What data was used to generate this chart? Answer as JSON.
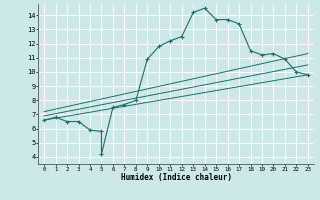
{
  "title": "",
  "xlabel": "Humidex (Indice chaleur)",
  "bg_color": "#cce8e8",
  "grid_color": "#ffffff",
  "line_color": "#1a6e6e",
  "xlim": [
    -0.5,
    23.5
  ],
  "ylim": [
    3.5,
    14.8
  ],
  "xticks": [
    0,
    1,
    2,
    3,
    4,
    5,
    6,
    7,
    8,
    9,
    10,
    11,
    12,
    13,
    14,
    15,
    16,
    17,
    18,
    19,
    20,
    21,
    22,
    23
  ],
  "yticks": [
    4,
    5,
    6,
    7,
    8,
    9,
    10,
    11,
    12,
    13,
    14
  ],
  "main_line_x": [
    0,
    1,
    2,
    3,
    4,
    5,
    5,
    6,
    7,
    8,
    9,
    10,
    11,
    12,
    13,
    14,
    15,
    16,
    17,
    18,
    19,
    20,
    21,
    22,
    23
  ],
  "main_line_y": [
    6.6,
    6.8,
    6.5,
    6.5,
    5.9,
    5.8,
    4.2,
    7.5,
    7.7,
    8.0,
    10.9,
    11.8,
    12.2,
    12.5,
    14.2,
    14.5,
    13.7,
    13.7,
    13.4,
    11.5,
    11.2,
    11.3,
    10.9,
    10.0,
    9.8
  ],
  "line2_x": [
    0,
    23
  ],
  "line2_y": [
    6.6,
    9.8
  ],
  "line3_x": [
    0,
    23
  ],
  "line3_y": [
    6.9,
    10.5
  ],
  "line4_x": [
    0,
    23
  ],
  "line4_y": [
    7.2,
    11.3
  ]
}
